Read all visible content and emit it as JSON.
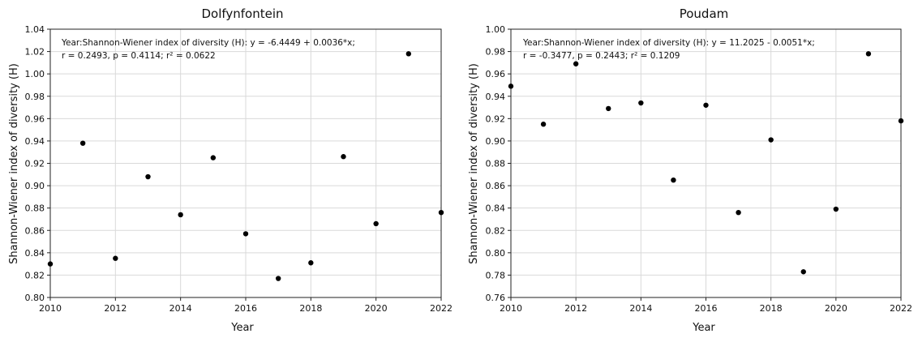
{
  "chart_data": [
    {
      "type": "scatter",
      "title": "Dolfynfontein",
      "xlabel": "Year",
      "ylabel": "Shannon-Wiener index of diversity (H)",
      "xlim": [
        2010,
        2022
      ],
      "ylim": [
        0.8,
        1.04
      ],
      "xticks": [
        2010,
        2012,
        2014,
        2016,
        2018,
        2020,
        2022
      ],
      "yticks": [
        0.8,
        0.82,
        0.84,
        0.86,
        0.88,
        0.9,
        0.92,
        0.94,
        0.96,
        0.98,
        1.0,
        1.02,
        1.04
      ],
      "xtick_labels": [
        "2010",
        "2012",
        "2014",
        "2016",
        "2018",
        "2020",
        "2022"
      ],
      "ytick_labels": [
        "0.80",
        "0.82",
        "0.84",
        "0.86",
        "0.88",
        "0.90",
        "0.92",
        "0.94",
        "0.96",
        "0.98",
        "1.00",
        "1.02",
        "1.04"
      ],
      "grid": true,
      "annotation_line1": "Year:Shannon-Wiener index of diversity (H):   y = -6.4449 + 0.0036*x;",
      "annotation_line2": "r = 0.2493, p = 0.4114; r² = 0.0622",
      "x": [
        2010,
        2011,
        2012,
        2013,
        2014,
        2015,
        2016,
        2017,
        2018,
        2019,
        2020,
        2021,
        2022
      ],
      "y": [
        0.83,
        0.938,
        0.835,
        0.908,
        0.874,
        0.925,
        0.857,
        0.817,
        0.831,
        0.926,
        0.866,
        1.018,
        0.876
      ],
      "point_color": "#000000"
    },
    {
      "type": "scatter",
      "title": "Poudam",
      "xlabel": "Year",
      "ylabel": "Shannon-Wiener index of diversity (H)",
      "xlim": [
        2010,
        2022
      ],
      "ylim": [
        0.76,
        1.0
      ],
      "xticks": [
        2010,
        2012,
        2014,
        2016,
        2018,
        2020,
        2022
      ],
      "yticks": [
        0.76,
        0.78,
        0.8,
        0.82,
        0.84,
        0.86,
        0.88,
        0.9,
        0.92,
        0.94,
        0.96,
        0.98,
        1.0
      ],
      "xtick_labels": [
        "2010",
        "2012",
        "2014",
        "2016",
        "2018",
        "2020",
        "2022"
      ],
      "ytick_labels": [
        "0.76",
        "0.78",
        "0.80",
        "0.82",
        "0.84",
        "0.86",
        "0.88",
        "0.90",
        "0.92",
        "0.94",
        "0.96",
        "0.98",
        "1.00"
      ],
      "grid": true,
      "annotation_line1": "Year:Shannon-Wiener index of diversity (H):   y = 11.2025 - 0.0051*x;",
      "annotation_line2": "r = -0.3477, p = 0.2443; r² = 0.1209",
      "x": [
        2010,
        2011,
        2012,
        2013,
        2014,
        2015,
        2016,
        2017,
        2018,
        2019,
        2020,
        2021,
        2022
      ],
      "y": [
        0.949,
        0.915,
        0.969,
        0.929,
        0.934,
        0.865,
        0.932,
        0.836,
        0.901,
        0.783,
        0.839,
        0.978,
        0.918
      ],
      "point_color": "#000000"
    }
  ]
}
